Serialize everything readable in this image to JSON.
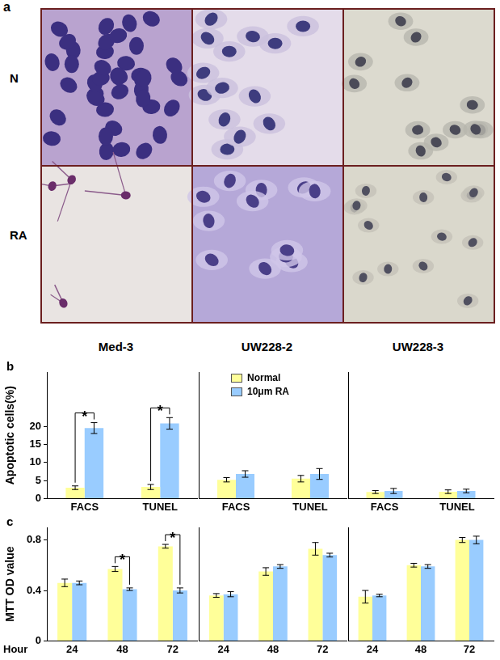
{
  "images": {
    "label": "a",
    "rows": [
      "N",
      "RA"
    ],
    "columns": [
      "Med-3",
      "UW228-2",
      "UW228-3"
    ]
  },
  "chart_data": [
    {
      "panel": "b",
      "type": "bar",
      "y_label": "Apoptotic cells(%)",
      "categories": [
        "FACS",
        "TUNEL"
      ],
      "series": [
        {
          "name": "Normal",
          "color": "#ffff99",
          "values": [
            3.0,
            3.2
          ],
          "errors": [
            0.5,
            0.7
          ]
        },
        {
          "name": "10μm RA",
          "color": "#99ccff",
          "values": [
            19.5,
            20.8
          ],
          "errors": [
            1.5,
            1.6
          ]
        }
      ],
      "ylim": [
        0,
        35
      ],
      "yticks": [
        0,
        5,
        10,
        15,
        20
      ],
      "grid": false,
      "annotations": [
        {
          "category": "FACS",
          "text": "*"
        },
        {
          "category": "TUNEL",
          "text": "*"
        }
      ]
    },
    {
      "type": "bar",
      "categories": [
        "FACS",
        "TUNEL"
      ],
      "series": [
        {
          "name": "Normal",
          "color": "#ffff99",
          "values": [
            5.2,
            5.5
          ],
          "errors": [
            0.6,
            0.9
          ]
        },
        {
          "name": "10μm RA",
          "color": "#99ccff",
          "values": [
            6.8,
            6.8
          ],
          "errors": [
            0.9,
            1.5
          ]
        }
      ],
      "ylim": [
        0,
        35
      ],
      "grid": false,
      "tick_labels": "x",
      "legend": "upper left"
    },
    {
      "type": "bar",
      "categories": [
        "FACS",
        "TUNEL"
      ],
      "series": [
        {
          "name": "Normal",
          "color": "#ffff99",
          "values": [
            1.8,
            1.9
          ],
          "errors": [
            0.4,
            0.5
          ]
        },
        {
          "name": "10μm RA",
          "color": "#99ccff",
          "values": [
            2.1,
            2.1
          ],
          "errors": [
            0.7,
            0.5
          ]
        }
      ],
      "ylim": [
        0,
        35
      ],
      "grid": false,
      "tick_labels": "x"
    },
    {
      "panel": "c",
      "type": "bar",
      "y_label": "MTT OD value",
      "x_label": "Hour",
      "categories": [
        "24",
        "48",
        "72"
      ],
      "series": [
        {
          "name": "Normal",
          "color": "#ffff99",
          "values": [
            0.46,
            0.57,
            0.75
          ],
          "errors": [
            0.03,
            0.02,
            0.015
          ]
        },
        {
          "name": "10μm RA",
          "color": "#99ccff",
          "values": [
            0.46,
            0.41,
            0.4
          ],
          "errors": [
            0.015,
            0.01,
            0.02
          ]
        }
      ],
      "ylim": [
        0,
        0.9
      ],
      "yticks": [
        0,
        0.4,
        0.8
      ],
      "grid": false,
      "annotations": [
        {
          "category": "48",
          "text": "*"
        },
        {
          "category": "72",
          "text": "*"
        }
      ]
    },
    {
      "type": "bar",
      "categories": [
        "24",
        "48",
        "72"
      ],
      "series": [
        {
          "name": "Normal",
          "color": "#ffff99",
          "values": [
            0.36,
            0.55,
            0.73
          ],
          "errors": [
            0.015,
            0.03,
            0.05
          ]
        },
        {
          "name": "10μm RA",
          "color": "#99ccff",
          "values": [
            0.37,
            0.59,
            0.68
          ],
          "errors": [
            0.02,
            0.015,
            0.015
          ]
        }
      ],
      "ylim": [
        0,
        0.9
      ],
      "grid": false,
      "tick_labels": "x"
    },
    {
      "type": "bar",
      "categories": [
        "24",
        "48",
        "72"
      ],
      "series": [
        {
          "name": "Normal",
          "color": "#ffff99",
          "values": [
            0.35,
            0.6,
            0.8
          ],
          "errors": [
            0.05,
            0.015,
            0.02
          ]
        },
        {
          "name": "10μm RA",
          "color": "#99ccff",
          "values": [
            0.36,
            0.59,
            0.8
          ],
          "errors": [
            0.01,
            0.015,
            0.03
          ]
        }
      ],
      "ylim": [
        0,
        0.9
      ],
      "grid": false,
      "tick_labels": "x"
    }
  ]
}
